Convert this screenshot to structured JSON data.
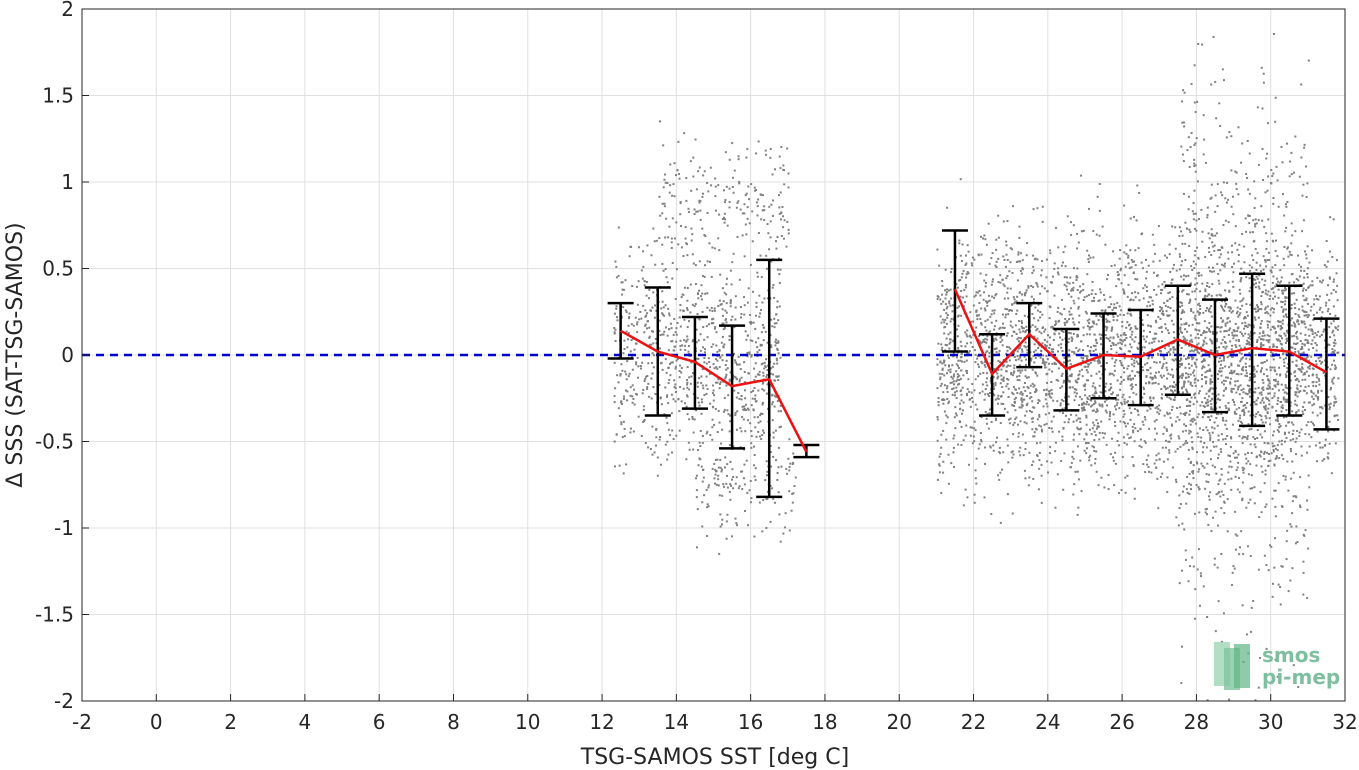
{
  "chart_data": {
    "type": "scatter",
    "title": "",
    "xlabel": "TSG-SAMOS SST [deg C]",
    "ylabel": "Δ SSS (SAT-TSG-SAMOS)",
    "xlim": [
      -2,
      32
    ],
    "ylim": [
      -2,
      2
    ],
    "xticks": [
      "-2",
      "0",
      "2",
      "4",
      "6",
      "8",
      "10",
      "12",
      "14",
      "16",
      "18",
      "20",
      "22",
      "24",
      "26",
      "28",
      "30",
      "32"
    ],
    "yticks": [
      "-2",
      "-1.5",
      "-1",
      "-0.5",
      "0",
      "0.5",
      "1",
      "1.5",
      "2"
    ],
    "grid": true,
    "reference_line": {
      "y": 0,
      "style": "dashed",
      "color": "#0000cc"
    },
    "scatter_color": "#808080",
    "mean_line_color": "#ee1111",
    "errorbar_color": "#000000",
    "binned_stats": {
      "x": [
        12.5,
        13.5,
        14.5,
        15.5,
        16.5,
        17.5,
        21.5,
        22.5,
        23.5,
        24.5,
        25.5,
        26.5,
        27.5,
        28.5,
        29.5,
        30.5,
        31.5
      ],
      "mean": [
        0.14,
        0.02,
        -0.04,
        -0.18,
        -0.14,
        -0.56,
        0.38,
        -0.11,
        0.12,
        -0.08,
        0.0,
        -0.01,
        0.09,
        0.0,
        0.04,
        0.02,
        -0.1
      ],
      "upper": [
        0.3,
        0.39,
        0.22,
        0.17,
        0.55,
        -0.52,
        0.72,
        0.12,
        0.3,
        0.15,
        0.24,
        0.26,
        0.4,
        0.32,
        0.47,
        0.4,
        0.21
      ],
      "lower": [
        -0.02,
        -0.35,
        -0.31,
        -0.54,
        -0.82,
        -0.59,
        0.02,
        -0.35,
        -0.07,
        -0.32,
        -0.25,
        -0.29,
        -0.23,
        -0.33,
        -0.41,
        -0.35,
        -0.43
      ]
    },
    "scatter_clusters": [
      {
        "x_range": [
          12.3,
          16.8
        ],
        "y_center": 0.0,
        "y_spread": 0.3,
        "n": 900
      },
      {
        "x_range": [
          13.5,
          17.0
        ],
        "y_center": 0.9,
        "y_spread": 0.2,
        "n": 200
      },
      {
        "x_range": [
          14.5,
          17.2
        ],
        "y_center": -0.75,
        "y_spread": 0.15,
        "n": 150
      },
      {
        "x_range": [
          21.0,
          31.8
        ],
        "y_center": 0.0,
        "y_spread": 0.35,
        "n": 3500
      },
      {
        "x_range": [
          27.5,
          31.0
        ],
        "y_center": 0.0,
        "y_spread": 0.8,
        "n": 800
      }
    ],
    "logo": {
      "line1": "smos",
      "line2": "pi-mep"
    }
  }
}
